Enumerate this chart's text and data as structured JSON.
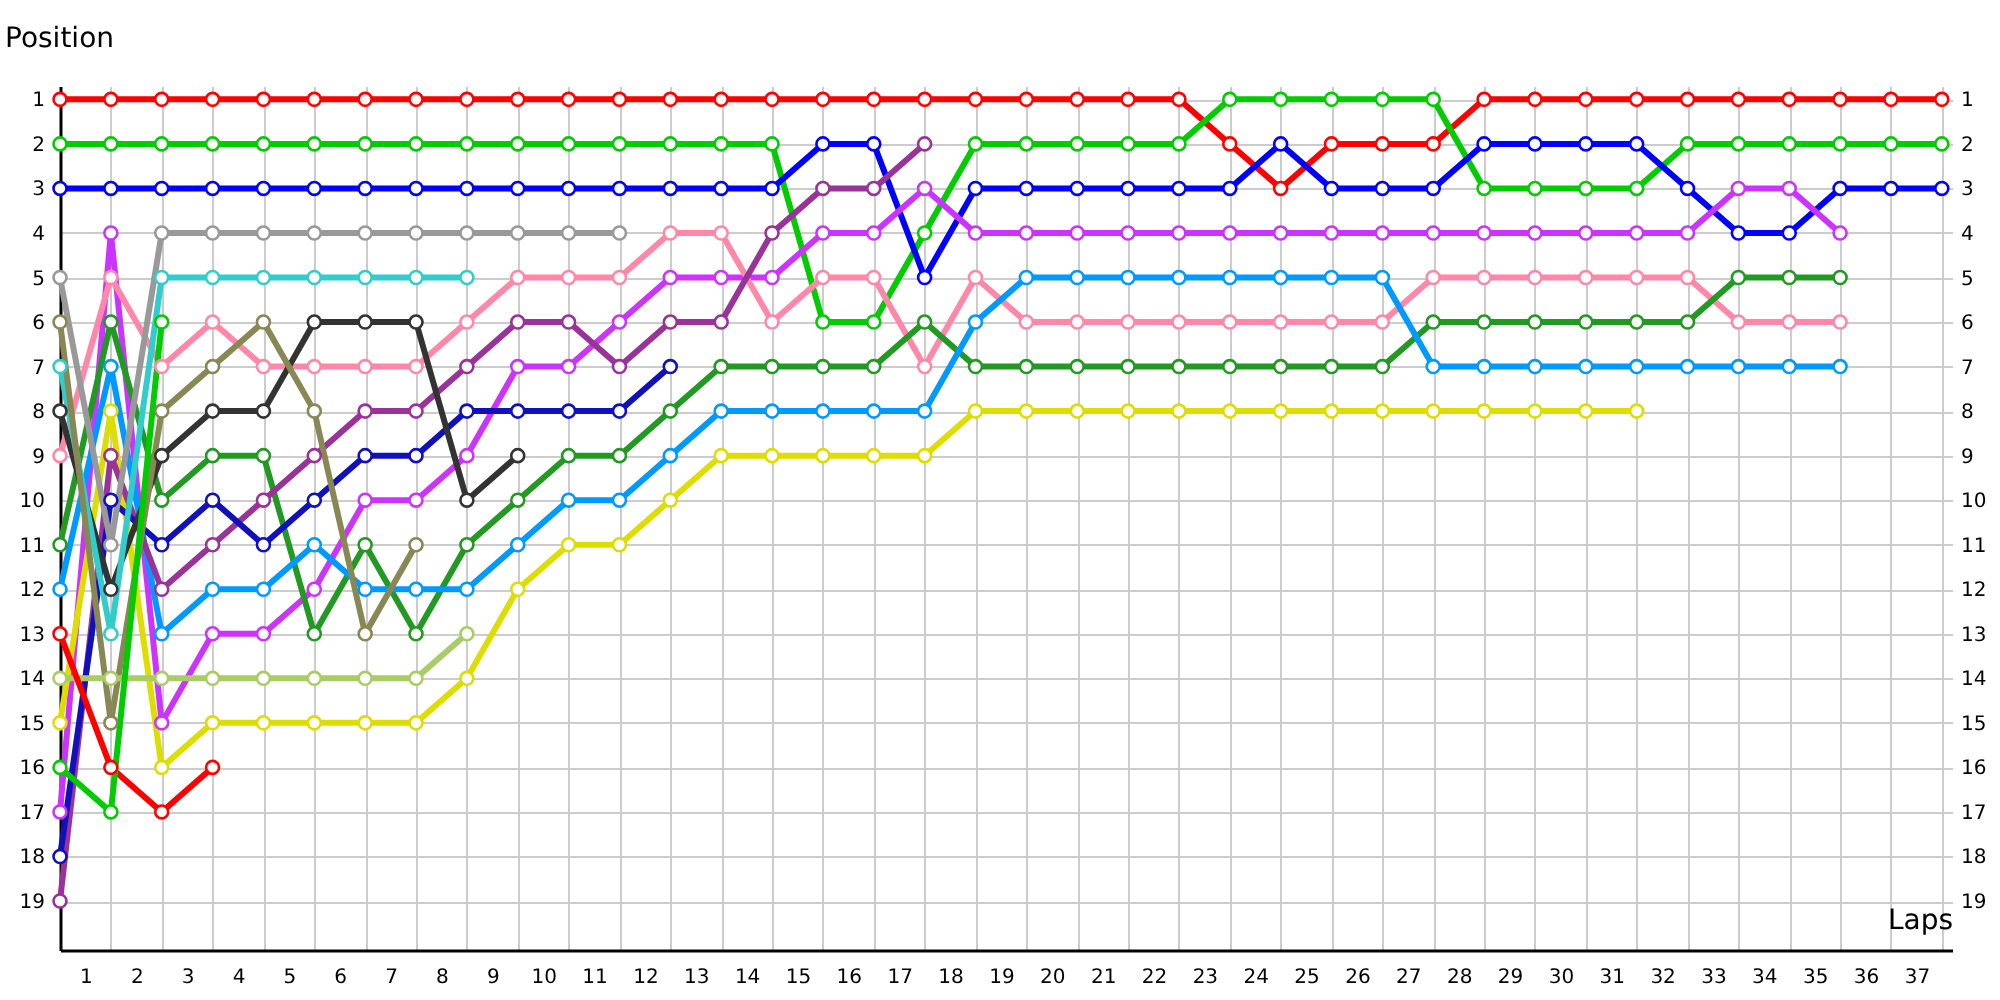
{
  "chart_data": {
    "type": "line",
    "xlabel": "Laps",
    "ylabel": "Position",
    "x": [
      0,
      1,
      2,
      3,
      4,
      5,
      6,
      7,
      8,
      9,
      10,
      11,
      12,
      13,
      14,
      15,
      16,
      17,
      18,
      19,
      20,
      21,
      22,
      23,
      24,
      25,
      26,
      27,
      28,
      29,
      30,
      31,
      32,
      33,
      34,
      35,
      36,
      37
    ],
    "series": [
      {
        "color": "#ff0000",
        "values": [
          1,
          1,
          1,
          1,
          1,
          1,
          1,
          1,
          1,
          1,
          1,
          1,
          1,
          1,
          1,
          1,
          1,
          1,
          1,
          1,
          1,
          1,
          1,
          2,
          3,
          2,
          2,
          2,
          1,
          1,
          1,
          1,
          1,
          1,
          1,
          1,
          1,
          1
        ]
      },
      {
        "color": "#00cc00",
        "values": [
          2,
          2,
          2,
          2,
          2,
          2,
          2,
          2,
          2,
          2,
          2,
          2,
          2,
          2,
          2,
          6,
          6,
          4,
          2,
          2,
          2,
          2,
          2,
          1,
          1,
          1,
          1,
          1,
          3,
          3,
          3,
          3,
          2,
          2,
          2,
          2,
          2,
          2
        ]
      },
      {
        "color": "#0000ff",
        "values": [
          3,
          3,
          3,
          3,
          3,
          3,
          3,
          3,
          3,
          3,
          3,
          3,
          3,
          3,
          3,
          2,
          2,
          5,
          3,
          3,
          3,
          3,
          3,
          3,
          2,
          3,
          3,
          3,
          2,
          2,
          2,
          2,
          3,
          4,
          4,
          3,
          3,
          3
        ]
      },
      {
        "color": "#cc33ff",
        "values": [
          17,
          4,
          15,
          13,
          13,
          12,
          10,
          10,
          9,
          7,
          7,
          6,
          5,
          5,
          5,
          4,
          4,
          3,
          4,
          4,
          4,
          4,
          4,
          4,
          4,
          4,
          4,
          4,
          4,
          4,
          4,
          4,
          4,
          3,
          3,
          4,
          null,
          null
        ]
      },
      {
        "color": "#ff88aa",
        "values": [
          9,
          5,
          7,
          6,
          7,
          7,
          7,
          7,
          6,
          5,
          5,
          5,
          4,
          4,
          6,
          5,
          5,
          7,
          5,
          6,
          6,
          6,
          6,
          6,
          6,
          6,
          6,
          5,
          5,
          5,
          5,
          5,
          5,
          6,
          6,
          6,
          null,
          null
        ]
      },
      {
        "color": "#229922",
        "values": [
          11,
          6,
          10,
          9,
          9,
          13,
          11,
          13,
          11,
          10,
          9,
          9,
          8,
          7,
          7,
          7,
          7,
          6,
          7,
          7,
          7,
          7,
          7,
          7,
          7,
          7,
          7,
          6,
          6,
          6,
          6,
          6,
          6,
          5,
          5,
          5,
          null,
          null
        ]
      },
      {
        "color": "#0099ff",
        "values": [
          12,
          7,
          13,
          12,
          12,
          11,
          12,
          12,
          12,
          11,
          10,
          10,
          9,
          8,
          8,
          8,
          8,
          8,
          6,
          5,
          5,
          5,
          5,
          5,
          5,
          5,
          5,
          7,
          7,
          7,
          7,
          7,
          7,
          7,
          7,
          7,
          null,
          null
        ]
      },
      {
        "color": "#dddd00",
        "values": [
          15,
          8,
          16,
          15,
          15,
          15,
          15,
          15,
          14,
          12,
          11,
          11,
          10,
          9,
          9,
          9,
          9,
          9,
          8,
          8,
          8,
          8,
          8,
          8,
          8,
          8,
          8,
          8,
          8,
          8,
          8,
          8,
          null,
          null,
          null,
          null,
          null,
          null
        ]
      },
      {
        "color": "#993399",
        "values": [
          19,
          9,
          12,
          11,
          10,
          9,
          8,
          8,
          7,
          6,
          6,
          7,
          6,
          6,
          4,
          3,
          3,
          2,
          null,
          null,
          null,
          null,
          null,
          null,
          null,
          null,
          null,
          null,
          null,
          null,
          null,
          null,
          null,
          null,
          null,
          null,
          null,
          null
        ]
      },
      {
        "color": "#1111bb",
        "values": [
          18,
          10,
          11,
          10,
          11,
          10,
          9,
          9,
          8,
          8,
          8,
          8,
          7,
          null,
          null,
          null,
          null,
          null,
          null,
          null,
          null,
          null,
          null,
          null,
          null,
          null,
          null,
          null,
          null,
          null,
          null,
          null,
          null,
          null,
          null,
          null,
          null,
          null
        ]
      },
      {
        "color": "#999999",
        "values": [
          5,
          11,
          4,
          4,
          4,
          4,
          4,
          4,
          4,
          4,
          4,
          4,
          null,
          null,
          null,
          null,
          null,
          null,
          null,
          null,
          null,
          null,
          null,
          null,
          null,
          null,
          null,
          null,
          null,
          null,
          null,
          null,
          null,
          null,
          null,
          null,
          null,
          null
        ]
      },
      {
        "color": "#333333",
        "values": [
          8,
          12,
          9,
          8,
          8,
          6,
          6,
          6,
          10,
          9,
          null,
          null,
          null,
          null,
          null,
          null,
          null,
          null,
          null,
          null,
          null,
          null,
          null,
          null,
          null,
          null,
          null,
          null,
          null,
          null,
          null,
          null,
          null,
          null,
          null,
          null,
          null,
          null
        ]
      },
      {
        "color": "#33cccc",
        "values": [
          7,
          13,
          5,
          5,
          5,
          5,
          5,
          5,
          5,
          null,
          null,
          null,
          null,
          null,
          null,
          null,
          null,
          null,
          null,
          null,
          null,
          null,
          null,
          null,
          null,
          null,
          null,
          null,
          null,
          null,
          null,
          null,
          null,
          null,
          null,
          null,
          null,
          null
        ]
      },
      {
        "color": "#888855",
        "values": [
          6,
          15,
          8,
          7,
          6,
          8,
          13,
          11,
          null,
          null,
          null,
          null,
          null,
          null,
          null,
          null,
          null,
          null,
          null,
          null,
          null,
          null,
          null,
          null,
          null,
          null,
          null,
          null,
          null,
          null,
          null,
          null,
          null,
          null,
          null,
          null,
          null,
          null
        ]
      },
      {
        "color": "#aacc66",
        "values": [
          14,
          14,
          14,
          14,
          14,
          14,
          14,
          14,
          13,
          null,
          null,
          null,
          null,
          null,
          null,
          null,
          null,
          null,
          null,
          null,
          null,
          null,
          null,
          null,
          null,
          null,
          null,
          null,
          null,
          null,
          null,
          null,
          null,
          null,
          null,
          null,
          null,
          null
        ]
      },
      {
        "color": "#ff0000",
        "values": [
          13,
          16,
          17,
          16,
          null,
          null,
          null,
          null,
          null,
          null,
          null,
          null,
          null,
          null,
          null,
          null,
          null,
          null,
          null,
          null,
          null,
          null,
          null,
          null,
          null,
          null,
          null,
          null,
          null,
          null,
          null,
          null,
          null,
          null,
          null,
          null,
          null,
          null
        ]
      },
      {
        "color": "#00cc00",
        "values": [
          16,
          17,
          6,
          null,
          null,
          null,
          null,
          null,
          null,
          null,
          null,
          null,
          null,
          null,
          null,
          null,
          null,
          null,
          null,
          null,
          null,
          null,
          null,
          null,
          null,
          null,
          null,
          null,
          null,
          null,
          null,
          null,
          null,
          null,
          null,
          null,
          null,
          null
        ]
      }
    ],
    "xlim": [
      0,
      37.2
    ],
    "xticks": [
      {
        "value": 0,
        "label": null
      },
      {
        "value": 0.5,
        "label": "1"
      },
      {
        "value": 1,
        "label": null
      },
      {
        "value": 1.5,
        "label": "2"
      },
      {
        "value": 2,
        "label": null
      },
      {
        "value": 2.5,
        "label": "3"
      },
      {
        "value": 3,
        "label": null
      },
      {
        "value": 3.5,
        "label": "4"
      },
      {
        "value": 4,
        "label": null
      },
      {
        "value": 4.5,
        "label": "5"
      },
      {
        "value": 5,
        "label": null
      },
      {
        "value": 5.5,
        "label": "6"
      },
      {
        "value": 6,
        "label": null
      },
      {
        "value": 6.5,
        "label": "7"
      },
      {
        "value": 7,
        "label": null
      },
      {
        "value": 7.5,
        "label": "8"
      },
      {
        "value": 8,
        "label": null
      },
      {
        "value": 8.5,
        "label": "9"
      },
      {
        "value": 9,
        "label": null
      },
      {
        "value": 9.5,
        "label": "10"
      },
      {
        "value": 10,
        "label": null
      },
      {
        "value": 10.5,
        "label": "11"
      },
      {
        "value": 11,
        "label": null
      },
      {
        "value": 11.5,
        "label": "12"
      },
      {
        "value": 12,
        "label": null
      },
      {
        "value": 12.5,
        "label": "13"
      },
      {
        "value": 13,
        "label": null
      },
      {
        "value": 13.5,
        "label": "14"
      },
      {
        "value": 14,
        "label": null
      },
      {
        "value": 14.5,
        "label": "15"
      },
      {
        "value": 15,
        "label": null
      },
      {
        "value": 15.5,
        "label": "16"
      },
      {
        "value": 16,
        "label": null
      },
      {
        "value": 16.5,
        "label": "17"
      },
      {
        "value": 17,
        "label": null
      },
      {
        "value": 17.5,
        "label": "18"
      },
      {
        "value": 18,
        "label": null
      },
      {
        "value": 18.5,
        "label": "19"
      },
      {
        "value": 19,
        "label": null
      },
      {
        "value": 19.5,
        "label": "20"
      },
      {
        "value": 20,
        "label": null
      },
      {
        "value": 20.5,
        "label": "21"
      },
      {
        "value": 21,
        "label": null
      },
      {
        "value": 21.5,
        "label": "22"
      },
      {
        "value": 22,
        "label": null
      },
      {
        "value": 22.5,
        "label": "23"
      },
      {
        "value": 23,
        "label": null
      },
      {
        "value": 23.5,
        "label": "24"
      },
      {
        "value": 24,
        "label": null
      },
      {
        "value": 24.5,
        "label": "25"
      },
      {
        "value": 25,
        "label": null
      },
      {
        "value": 25.5,
        "label": "26"
      },
      {
        "value": 26,
        "label": null
      },
      {
        "value": 26.5,
        "label": "27"
      },
      {
        "value": 27,
        "label": null
      },
      {
        "value": 27.5,
        "label": "28"
      },
      {
        "value": 28,
        "label": null
      },
      {
        "value": 28.5,
        "label": "29"
      },
      {
        "value": 29,
        "label": null
      },
      {
        "value": 29.5,
        "label": "30"
      },
      {
        "value": 30,
        "label": null
      },
      {
        "value": 30.5,
        "label": "31"
      },
      {
        "value": 31,
        "label": null
      },
      {
        "value": 31.5,
        "label": "32"
      },
      {
        "value": 32,
        "label": null
      },
      {
        "value": 32.5,
        "label": "33"
      },
      {
        "value": 33,
        "label": null
      },
      {
        "value": 33.5,
        "label": "34"
      },
      {
        "value": 34,
        "label": null
      },
      {
        "value": 34.5,
        "label": "35"
      },
      {
        "value": 35,
        "label": null
      },
      {
        "value": 35.5,
        "label": "36"
      },
      {
        "value": 36,
        "label": null
      },
      {
        "value": 36.5,
        "label": "37"
      },
      {
        "value": 37,
        "label": null
      }
    ],
    "ylim": [
      20.1,
      0.7
    ],
    "yticks": [
      1,
      2,
      3,
      4,
      5,
      6,
      7,
      8,
      9,
      10,
      11,
      12,
      13,
      14,
      15,
      16,
      17,
      18,
      19
    ],
    "y2lim": [
      20.1,
      0.7
    ],
    "y2ticks": [
      1,
      2,
      3,
      4,
      5,
      6,
      7,
      8,
      9,
      10,
      11,
      12,
      13,
      14,
      15,
      16,
      17,
      18,
      19
    ],
    "grid": true,
    "marker": "circle",
    "line_style": "solid"
  }
}
